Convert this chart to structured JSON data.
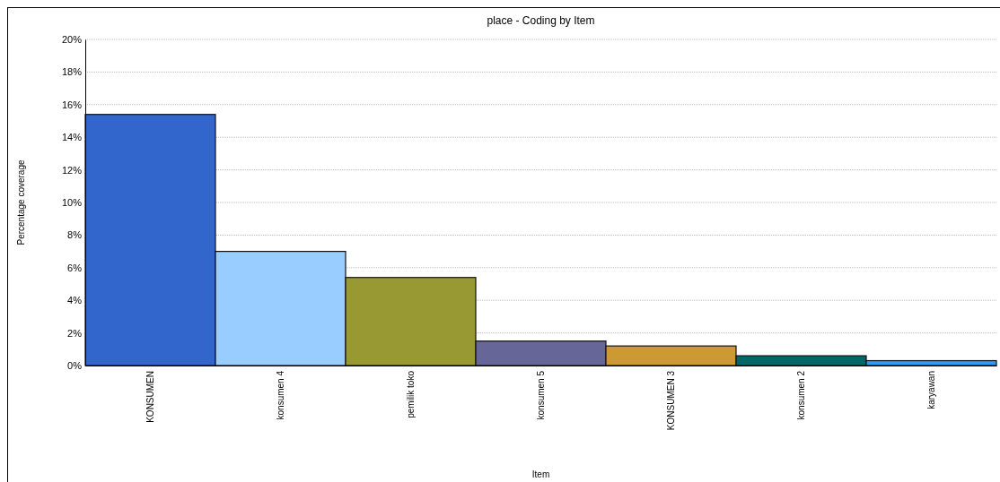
{
  "chart_data": {
    "type": "bar",
    "title": "place - Coding by Item",
    "xlabel": "Item",
    "ylabel": "Percentage coverage",
    "categories": [
      "KONSUMEN",
      "konsumen 4",
      "pemilik toko",
      "konsumen 5",
      "KONSUMEN 3",
      "konsumen 2",
      "karyawan"
    ],
    "values": [
      15.4,
      7.0,
      5.4,
      1.5,
      1.2,
      0.6,
      0.3
    ],
    "colors": [
      "#3366cc",
      "#99ccff",
      "#999933",
      "#666699",
      "#cc9933",
      "#006666",
      "#3399ee"
    ],
    "ylim": [
      0,
      20
    ],
    "yticks": [
      {
        "value": 0,
        "label": "0%"
      },
      {
        "value": 2,
        "label": "2%"
      },
      {
        "value": 4,
        "label": "4%"
      },
      {
        "value": 6,
        "label": "6%"
      },
      {
        "value": 8,
        "label": "8%"
      },
      {
        "value": 10,
        "label": "10%"
      },
      {
        "value": 12,
        "label": "12%"
      },
      {
        "value": 14,
        "label": "14%"
      },
      {
        "value": 16,
        "label": "16%"
      },
      {
        "value": 18,
        "label": "18%"
      },
      {
        "value": 20,
        "label": "20%"
      }
    ],
    "grid": "y",
    "legend": false
  }
}
